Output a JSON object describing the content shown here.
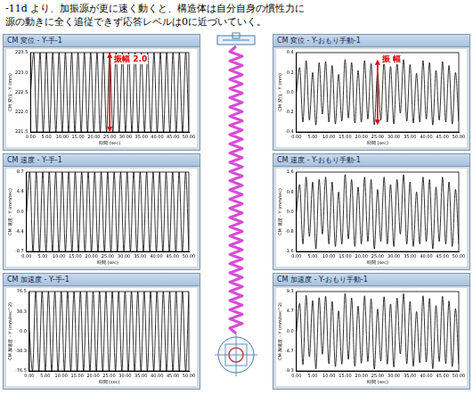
{
  "text": [
    "-11d より、加振源が更に速く動くと、構造体は自分自身の慣性力に",
    "源の動きに全く追従できず応答レベルは0に近づいていく。"
  ],
  "chart_data": [
    {
      "type": "line",
      "title": "CM 変位 - Y-手-1",
      "x_label": "時間 (sec)",
      "y_label": "CM 変位 - Y (mm)",
      "color": "#000000",
      "grid": false,
      "annotations": [
        "振幅 2.0"
      ],
      "x": [
        0,
        1,
        2,
        3,
        4,
        5,
        6,
        7,
        8,
        9,
        10,
        11,
        12,
        13,
        14,
        15,
        16,
        17,
        18,
        19,
        20,
        21,
        22,
        23,
        24,
        25,
        26,
        27,
        28,
        29,
        30,
        31,
        32,
        33,
        34,
        35,
        36,
        37,
        38,
        39,
        40,
        41,
        42,
        43,
        44,
        45,
        46,
        47,
        48,
        49,
        50
      ],
      "values": [
        222.5,
        223.5,
        221.5,
        223.5,
        221.5,
        223.5,
        221.5,
        223.5,
        221.5,
        223.5,
        221.5,
        223.5,
        221.5,
        223.5,
        221.5,
        223.5,
        221.5,
        223.5,
        221.5,
        223.5,
        221.5,
        223.5,
        221.5,
        223.5,
        221.5,
        223.5,
        221.5,
        223.5,
        221.5,
        223.5,
        221.5,
        223.5,
        221.5,
        223.5,
        221.5,
        223.5,
        221.5,
        223.5,
        221.5,
        223.5,
        221.5,
        223.5,
        221.5,
        223.5,
        221.5,
        223.5,
        221.5,
        223.5,
        221.5,
        223.5,
        221.5
      ],
      "xlim": [
        0,
        50
      ],
      "xticks": [
        {
          "value": 0,
          "label": "0.00"
        },
        {
          "value": 5,
          "label": "5.00"
        },
        {
          "value": 10,
          "label": "10.00"
        },
        {
          "value": 15,
          "label": "15.00"
        },
        {
          "value": 20,
          "label": "20.00"
        },
        {
          "value": 25,
          "label": "25.00"
        },
        {
          "value": 30,
          "label": "30.00"
        },
        {
          "value": 35,
          "label": "35.00"
        },
        {
          "value": 40,
          "label": "40.00"
        },
        {
          "value": 45,
          "label": "45.00"
        },
        {
          "value": 50,
          "label": "50.00"
        }
      ],
      "ylim": [
        221.5,
        223.5
      ],
      "yticks": [
        221.5,
        {
          "value": 222,
          "label": "222.0"
        },
        222.5,
        {
          "value": 223,
          "label": "223.0"
        },
        223.5
      ]
    },
    {
      "type": "line",
      "title": "CM 速度 - Y-手-1",
      "x_label": "時間 (sec)",
      "y_label": "CM 速度 - Y (mm/sec)",
      "color": "#000000",
      "grid": false,
      "x": [
        0,
        1,
        2,
        3,
        4,
        5,
        6,
        7,
        8,
        9,
        10,
        11,
        12,
        13,
        14,
        15,
        16,
        17,
        18,
        19,
        20,
        21,
        22,
        23,
        24,
        25,
        26,
        27,
        28,
        29,
        30,
        31,
        32,
        33,
        34,
        35,
        36,
        37,
        38,
        39,
        40,
        41,
        42,
        43,
        44,
        45,
        46,
        47,
        48,
        49,
        50
      ],
      "values": [
        0,
        8.7,
        -8.7,
        8.7,
        -8.7,
        8.7,
        -8.7,
        8.7,
        -8.7,
        8.7,
        -8.7,
        8.7,
        -8.7,
        8.7,
        -8.7,
        8.7,
        -8.7,
        8.7,
        -8.7,
        8.7,
        -8.7,
        8.7,
        -8.7,
        8.7,
        -8.7,
        8.7,
        -8.7,
        8.7,
        -8.7,
        8.7,
        -8.7,
        8.7,
        -8.7,
        8.7,
        -8.7,
        8.7,
        -8.7,
        8.7,
        -8.7,
        8.7,
        -8.7,
        8.7,
        -8.7,
        8.7,
        -8.7,
        8.7,
        -8.7,
        8.7,
        -8.7,
        8.7,
        -8.7
      ],
      "xlim": [
        0,
        50
      ],
      "xticks": [
        {
          "value": 0,
          "label": "0.00"
        },
        {
          "value": 5,
          "label": "5.00"
        },
        {
          "value": 10,
          "label": "10.00"
        },
        {
          "value": 15,
          "label": "15.00"
        },
        {
          "value": 20,
          "label": "20.00"
        },
        {
          "value": 25,
          "label": "25.00"
        },
        {
          "value": 30,
          "label": "30.00"
        },
        {
          "value": 35,
          "label": "35.00"
        },
        {
          "value": 40,
          "label": "40.00"
        },
        {
          "value": 45,
          "label": "45.00"
        },
        {
          "value": 50,
          "label": "50.00"
        }
      ],
      "ylim": [
        -8.7,
        8.7
      ],
      "yticks": [
        -8.7,
        -4.4,
        {
          "value": 0,
          "label": "0.0"
        },
        4.4,
        8.7
      ]
    },
    {
      "type": "line",
      "title": "CM 加速度 - Y-手-1",
      "x_label": "時間 (sec)",
      "y_label": "CM 加速度 - Y (mm/sec^2)",
      "color": "#000000",
      "grid": false,
      "x": [
        0,
        1,
        2,
        3,
        4,
        5,
        6,
        7,
        8,
        9,
        10,
        11,
        12,
        13,
        14,
        15,
        16,
        17,
        18,
        19,
        20,
        21,
        22,
        23,
        24,
        25,
        26,
        27,
        28,
        29,
        30,
        31,
        32,
        33,
        34,
        35,
        36,
        37,
        38,
        39,
        40,
        41,
        42,
        43,
        44,
        45,
        46,
        47,
        48,
        49,
        50
      ],
      "values": [
        0,
        -76.5,
        76.5,
        -76.5,
        76.5,
        -76.5,
        76.5,
        -76.5,
        76.5,
        -76.5,
        76.5,
        -76.5,
        76.5,
        -76.5,
        76.5,
        -76.5,
        76.5,
        -76.5,
        76.5,
        -76.5,
        76.5,
        -76.5,
        76.5,
        -76.5,
        76.5,
        -76.5,
        76.5,
        -76.5,
        76.5,
        -76.5,
        76.5,
        -76.5,
        76.5,
        -76.5,
        76.5,
        -76.5,
        76.5,
        -76.5,
        76.5,
        -76.5,
        76.5,
        -76.5,
        76.5,
        -76.5,
        76.5,
        -76.5,
        76.5,
        -76.5,
        76.5,
        -76.5,
        76.5
      ],
      "xlim": [
        0,
        50
      ],
      "xticks": [
        {
          "value": 0,
          "label": "0.00"
        },
        {
          "value": 5,
          "label": "5.00"
        },
        {
          "value": 10,
          "label": "10.00"
        },
        {
          "value": 15,
          "label": "15.00"
        },
        {
          "value": 20,
          "label": "20.00"
        },
        {
          "value": 25,
          "label": "25.00"
        },
        {
          "value": 30,
          "label": "30.00"
        },
        {
          "value": 35,
          "label": "35.00"
        },
        {
          "value": 40,
          "label": "40.00"
        },
        {
          "value": 45,
          "label": "45.00"
        },
        {
          "value": 50,
          "label": "50.00"
        }
      ],
      "ylim": [
        -76.5,
        76.5
      ],
      "yticks": [
        -76.5,
        -38.3,
        {
          "value": 0,
          "label": "0.0"
        },
        38.3,
        76.5
      ]
    },
    {
      "type": "line",
      "title": "CM 変位 - Y-おもり手動-1",
      "x_label": "時間 (sec)",
      "y_label": "CM 変位 - Y (mm)",
      "color": "#000000",
      "grid": false,
      "annotations": [
        "振 幅"
      ],
      "x": [
        0,
        1,
        2,
        3,
        4,
        5,
        6,
        7,
        8,
        9,
        10,
        11,
        12,
        13,
        14,
        15,
        16,
        17,
        18,
        19,
        20,
        21,
        22,
        23,
        24,
        25,
        26,
        27,
        28,
        29,
        30,
        31,
        32,
        33,
        34,
        35,
        36,
        37,
        38,
        39,
        40,
        41,
        42,
        43,
        44,
        45,
        46,
        47,
        48,
        49,
        50
      ],
      "values": [
        0,
        0.25,
        -0.3,
        0.32,
        -0.28,
        0.2,
        -0.33,
        0.3,
        -0.22,
        0.31,
        -0.3,
        0.27,
        -0.32,
        0.18,
        -0.29,
        0.33,
        -0.26,
        0.3,
        -0.31,
        0.22,
        -0.3,
        0.32,
        -0.27,
        0.29,
        -0.33,
        0.2,
        -0.28,
        0.31,
        -0.3,
        0.26,
        -0.32,
        0.3,
        -0.21,
        0.33,
        -0.29,
        0.28,
        -0.31,
        0.19,
        -0.3,
        0.32,
        -0.27,
        0.3,
        -0.33,
        0.22,
        -0.28,
        0.31,
        -0.3,
        0.27,
        -0.32,
        0.2,
        -0.29
      ],
      "xlim": [
        0,
        50
      ],
      "xticks": [
        {
          "value": 0,
          "label": "0.00"
        },
        {
          "value": 5,
          "label": "5.00"
        },
        {
          "value": 10,
          "label": "10.00"
        },
        {
          "value": 15,
          "label": "15.00"
        },
        {
          "value": 20,
          "label": "20.00"
        },
        {
          "value": 25,
          "label": "25.00"
        },
        {
          "value": 30,
          "label": "30.00"
        },
        {
          "value": 35,
          "label": "35.00"
        },
        {
          "value": 40,
          "label": "40.00"
        },
        {
          "value": 45,
          "label": "45.00"
        },
        {
          "value": 50,
          "label": "50.00"
        }
      ],
      "ylim": [
        -0.4,
        0.4
      ],
      "yticks": [
        -0.4,
        -0.2,
        {
          "value": 0,
          "label": "0.0"
        },
        0.2,
        0.4
      ]
    },
    {
      "type": "line",
      "title": "CM 速度 - Y-おもり手動-1",
      "x_label": "時間 (sec)",
      "y_label": "CM 速度 - Y (mm/sec)",
      "color": "#000000",
      "grid": false,
      "x": [
        0,
        1,
        2,
        3,
        4,
        5,
        6,
        7,
        8,
        9,
        10,
        11,
        12,
        13,
        14,
        15,
        16,
        17,
        18,
        19,
        20,
        21,
        22,
        23,
        24,
        25,
        26,
        27,
        28,
        29,
        30,
        31,
        32,
        33,
        34,
        35,
        36,
        37,
        38,
        39,
        40,
        41,
        42,
        43,
        44,
        45,
        46,
        47,
        48,
        49,
        50
      ],
      "values": [
        0,
        1.1,
        -1.3,
        1.4,
        -1.0,
        1.2,
        -1.5,
        1.3,
        -0.9,
        1.4,
        -1.3,
        1.2,
        -1.4,
        0.8,
        -1.3,
        1.5,
        -1.1,
        1.3,
        -1.4,
        1.0,
        -1.3,
        1.4,
        -1.2,
        1.3,
        -1.5,
        0.9,
        -1.2,
        1.4,
        -1.3,
        1.1,
        -1.4,
        1.3,
        -0.9,
        1.5,
        -1.3,
        1.2,
        -1.4,
        0.8,
        -1.3,
        1.4,
        -1.2,
        1.3,
        -1.5,
        1.0,
        -1.2,
        1.4,
        -1.3,
        1.2,
        -1.4,
        0.9,
        -1.3
      ],
      "xlim": [
        0,
        50
      ],
      "xticks": [
        {
          "value": 0,
          "label": "0.00"
        },
        {
          "value": 5,
          "label": "5.00"
        },
        {
          "value": 10,
          "label": "10.00"
        },
        {
          "value": 15,
          "label": "15.00"
        },
        {
          "value": 20,
          "label": "20.00"
        },
        {
          "value": 25,
          "label": "25.00"
        },
        {
          "value": 30,
          "label": "30.00"
        },
        {
          "value": 35,
          "label": "35.00"
        },
        {
          "value": 40,
          "label": "40.00"
        },
        {
          "value": 45,
          "label": "45.00"
        },
        {
          "value": 50,
          "label": "50.00"
        }
      ],
      "ylim": [
        -1.6,
        1.6
      ],
      "yticks": [
        -1.6,
        -0.8,
        {
          "value": 0,
          "label": "0.0"
        },
        0.8,
        1.6
      ]
    },
    {
      "type": "line",
      "title": "CM 加速度 - Y-おもり手動-1",
      "x_label": "時間 (sec)",
      "y_label": "CM 加速度 - Y (mm/sec^2)",
      "color": "#000000",
      "grid": false,
      "x": [
        0,
        1,
        2,
        3,
        4,
        5,
        6,
        7,
        8,
        9,
        10,
        11,
        12,
        13,
        14,
        15,
        16,
        17,
        18,
        19,
        20,
        21,
        22,
        23,
        24,
        25,
        26,
        27,
        28,
        29,
        30,
        31,
        32,
        33,
        34,
        35,
        36,
        37,
        38,
        39,
        40,
        41,
        42,
        43,
        44,
        45,
        46,
        47,
        48,
        49,
        50
      ],
      "values": [
        0,
        6.5,
        -7.8,
        8.4,
        -6.0,
        7.2,
        -8.8,
        7.9,
        -5.4,
        8.2,
        -7.6,
        7.0,
        -8.3,
        4.8,
        -7.7,
        8.9,
        -6.6,
        7.8,
        -8.2,
        5.9,
        -7.5,
        8.3,
        -7.1,
        7.6,
        -8.9,
        5.2,
        -7.0,
        8.1,
        -7.7,
        6.4,
        -8.4,
        7.8,
        -5.3,
        8.8,
        -7.6,
        7.0,
        -8.2,
        4.6,
        -7.4,
        8.3,
        -7.2,
        7.7,
        -8.8,
        6.0,
        -7.1,
        8.2,
        -7.6,
        7.1,
        -8.3,
        5.3,
        -7.7
      ],
      "xlim": [
        0,
        50
      ],
      "xticks": [
        {
          "value": 0,
          "label": "0.00"
        },
        {
          "value": 5,
          "label": "5.00"
        },
        {
          "value": 10,
          "label": "10.00"
        },
        {
          "value": 15,
          "label": "15.00"
        },
        {
          "value": 20,
          "label": "20.00"
        },
        {
          "value": 25,
          "label": "25.00"
        },
        {
          "value": 30,
          "label": "30.00"
        },
        {
          "value": 35,
          "label": "35.00"
        },
        {
          "value": 40,
          "label": "40.00"
        },
        {
          "value": 45,
          "label": "45.00"
        },
        {
          "value": 50,
          "label": "50.00"
        }
      ],
      "ylim": [
        -9.3,
        9.3
      ],
      "yticks": [
        -9.3,
        -4.7,
        {
          "value": 0,
          "label": "0.0"
        },
        4.7,
        9.3
      ]
    }
  ]
}
